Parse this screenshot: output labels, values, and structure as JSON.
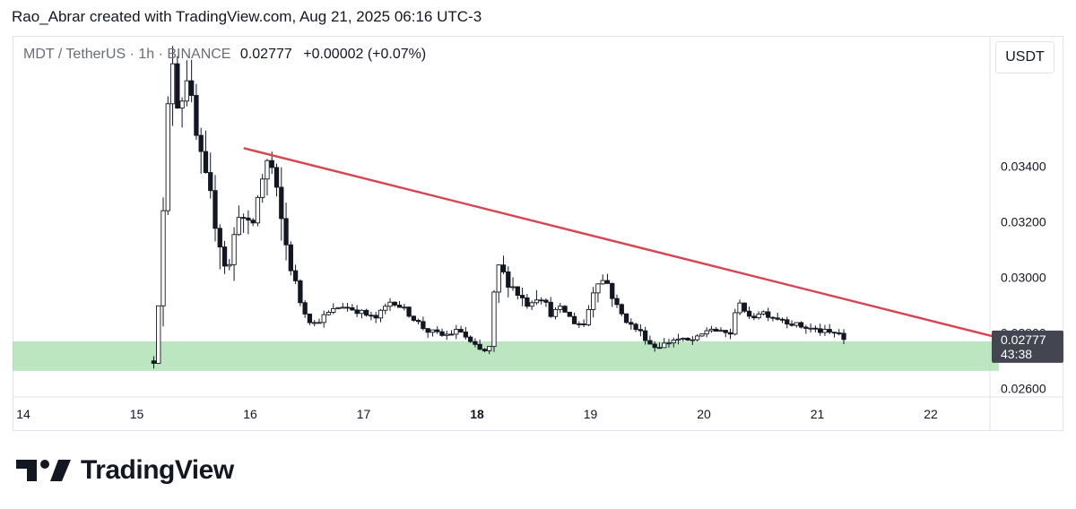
{
  "header": {
    "caption": "Rao_Abrar created with TradingView.com, Aug 21, 2025 06:16 UTC-3"
  },
  "legend": {
    "symbol": "MDT / TetherUS · 1h · BINANCE",
    "last": "0.02777",
    "change": "+0.00002 (+0.07%)"
  },
  "currency_button": "USDT",
  "price_badge": {
    "price": "0.02777",
    "countdown": "43:38"
  },
  "brand": {
    "name": "TradingView"
  },
  "colors": {
    "candle": "#131722",
    "trendline": "#d9434f",
    "support_zone": "#a5ddab",
    "badge": "#434651",
    "grid": "#e0e3eb"
  },
  "chart_data": {
    "type": "candlestick",
    "title": "MDT / TetherUS · 1h · BINANCE",
    "xlabel": "",
    "ylabel": "",
    "ylim": [
      0.0257,
      0.0387
    ],
    "xlim": [
      14.0,
      22.5
    ],
    "yticks": [
      "0.02600",
      "0.02800",
      "0.03000",
      "0.03200",
      "0.03400"
    ],
    "xticks": [
      {
        "value": 14,
        "label": "14",
        "bold": false
      },
      {
        "value": 15,
        "label": "15",
        "bold": false
      },
      {
        "value": 16,
        "label": "16",
        "bold": false
      },
      {
        "value": 17,
        "label": "17",
        "bold": false
      },
      {
        "value": 18,
        "label": "18",
        "bold": true
      },
      {
        "value": 19,
        "label": "19",
        "bold": false
      },
      {
        "value": 20,
        "label": "20",
        "bold": false
      },
      {
        "value": 21,
        "label": "21",
        "bold": false
      },
      {
        "value": 22,
        "label": "22",
        "bold": false
      }
    ],
    "last_price": 0.02777,
    "resistance_trendline": [
      {
        "x": 15.95,
        "y": 0.03465
      },
      {
        "x": 22.6,
        "y": 0.02783
      }
    ],
    "support_zone": {
      "x_end": 22.6,
      "y_top": 0.0277,
      "y_bottom": 0.02664
    },
    "price_path": [
      [
        15.15,
        0.027
      ],
      [
        15.2,
        0.0295
      ],
      [
        15.25,
        0.0335
      ],
      [
        15.3,
        0.0385
      ],
      [
        15.37,
        0.036
      ],
      [
        15.45,
        0.0375
      ],
      [
        15.5,
        0.0355
      ],
      [
        15.6,
        0.0335
      ],
      [
        15.7,
        0.032
      ],
      [
        15.8,
        0.03
      ],
      [
        15.9,
        0.0325
      ],
      [
        16.0,
        0.0315
      ],
      [
        16.1,
        0.0335
      ],
      [
        16.17,
        0.0344
      ],
      [
        16.25,
        0.0325
      ],
      [
        16.35,
        0.0305
      ],
      [
        16.45,
        0.029
      ],
      [
        16.55,
        0.0283
      ],
      [
        16.65,
        0.0286
      ],
      [
        16.8,
        0.029
      ],
      [
        16.95,
        0.0288
      ],
      [
        17.1,
        0.0285
      ],
      [
        17.25,
        0.0292
      ],
      [
        17.4,
        0.0287
      ],
      [
        17.55,
        0.0281
      ],
      [
        17.7,
        0.0279
      ],
      [
        17.85,
        0.0281
      ],
      [
        17.95,
        0.0276
      ],
      [
        18.05,
        0.0273
      ],
      [
        18.12,
        0.0275
      ],
      [
        18.17,
        0.0305
      ],
      [
        18.25,
        0.03
      ],
      [
        18.35,
        0.0295
      ],
      [
        18.45,
        0.029
      ],
      [
        18.55,
        0.0295
      ],
      [
        18.65,
        0.0287
      ],
      [
        18.75,
        0.0289
      ],
      [
        18.85,
        0.0284
      ],
      [
        18.95,
        0.0283
      ],
      [
        19.05,
        0.03
      ],
      [
        19.15,
        0.0298
      ],
      [
        19.25,
        0.0288
      ],
      [
        19.35,
        0.0283
      ],
      [
        19.45,
        0.028
      ],
      [
        19.55,
        0.0275
      ],
      [
        19.65,
        0.0276
      ],
      [
        19.75,
        0.0278
      ],
      [
        19.85,
        0.0277
      ],
      [
        19.95,
        0.0278
      ],
      [
        20.05,
        0.0282
      ],
      [
        20.15,
        0.028
      ],
      [
        20.25,
        0.028
      ],
      [
        20.3,
        0.0293
      ],
      [
        20.4,
        0.0285
      ],
      [
        20.5,
        0.0288
      ],
      [
        20.6,
        0.0286
      ],
      [
        20.7,
        0.0285
      ],
      [
        20.8,
        0.0283
      ],
      [
        20.9,
        0.0282
      ],
      [
        21.0,
        0.0281
      ],
      [
        21.1,
        0.028
      ],
      [
        21.2,
        0.028
      ],
      [
        21.25,
        0.02777
      ]
    ]
  }
}
